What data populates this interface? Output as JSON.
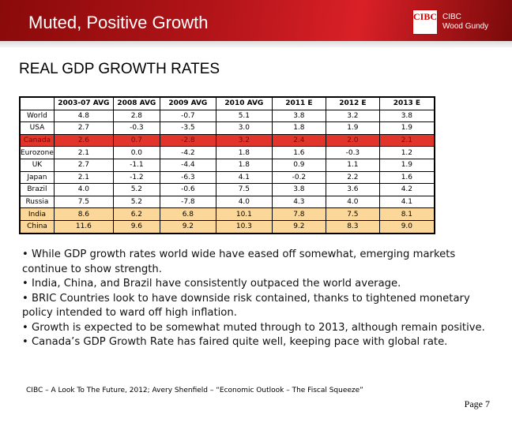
{
  "header": {
    "title": "Muted, Positive Growth",
    "logo_mark": "CIBC",
    "logo_line1": "CIBC",
    "logo_line2": "Wood Gundy"
  },
  "heading": "REAL GDP GROWTH RATES",
  "table": {
    "columns": [
      "",
      "2003-07 AVG",
      "2008 AVG",
      "2009 AVG",
      "2010 AVG",
      "2011 E",
      "2012 E",
      "2013 E"
    ],
    "rows": [
      {
        "highlight": "none",
        "cells": [
          "World",
          "4.8",
          "2.8",
          "-0.7",
          "5.1",
          "3.8",
          "3.2",
          "3.8"
        ]
      },
      {
        "highlight": "none",
        "cells": [
          "USA",
          "2.7",
          "-0.3",
          "-3.5",
          "3.0",
          "1.8",
          "1.9",
          "1.9"
        ]
      },
      {
        "highlight": "red",
        "cells": [
          "Canada",
          "2.6",
          "0.7",
          "-2.8",
          "3.2",
          "2.4",
          "2.0",
          "2.1"
        ]
      },
      {
        "highlight": "none",
        "cells": [
          "Eurozone",
          "2.1",
          "0.0",
          "-4.2",
          "1.8",
          "1.6",
          "-0.3",
          "1.2"
        ]
      },
      {
        "highlight": "none",
        "cells": [
          "UK",
          "2.7",
          "-1.1",
          "-4.4",
          "1.8",
          "0.9",
          "1.1",
          "1.9"
        ]
      },
      {
        "highlight": "none",
        "cells": [
          "Japan",
          "2.1",
          "-1.2",
          "-6.3",
          "4.1",
          "-0.2",
          "2.2",
          "1.6"
        ]
      },
      {
        "highlight": "none",
        "cells": [
          "Brazil",
          "4.0",
          "5.2",
          "-0.6",
          "7.5",
          "3.8",
          "3.6",
          "4.2"
        ]
      },
      {
        "highlight": "none",
        "cells": [
          "Russia",
          "7.5",
          "5.2",
          "-7.8",
          "4.0",
          "4.3",
          "4.0",
          "4.1"
        ]
      },
      {
        "highlight": "tan",
        "cells": [
          "India",
          "8.6",
          "6.2",
          "6.8",
          "10.1",
          "7.8",
          "7.5",
          "8.1"
        ]
      },
      {
        "highlight": "tan",
        "cells": [
          "China",
          "11.6",
          "9.6",
          "9.2",
          "10.3",
          "9.2",
          "8.3",
          "9.0"
        ]
      }
    ]
  },
  "bullets": [
    "• While GDP growth rates world wide have eased off somewhat, emerging markets continue to show strength.",
    "• India, China, and Brazil have consistently outpaced the world average.",
    "• BRIC Countries look to have downside risk contained, thanks to tightened monetary policy intended to ward off high inflation.",
    "• Growth is expected to be somewhat muted through to 2013, although remain positive.",
    "• Canada’s GDP Growth Rate has faired quite well, keeping pace with global rate."
  ],
  "source": "CIBC – A Look To The Future, 2012; Avery Shenfield – “Economic Outlook – The Fiscal Squeeze”",
  "page": "Page 7",
  "colors": {
    "banner": "#b01418",
    "highlight_red": "#e1342a",
    "highlight_tan": "#fbd89a"
  }
}
